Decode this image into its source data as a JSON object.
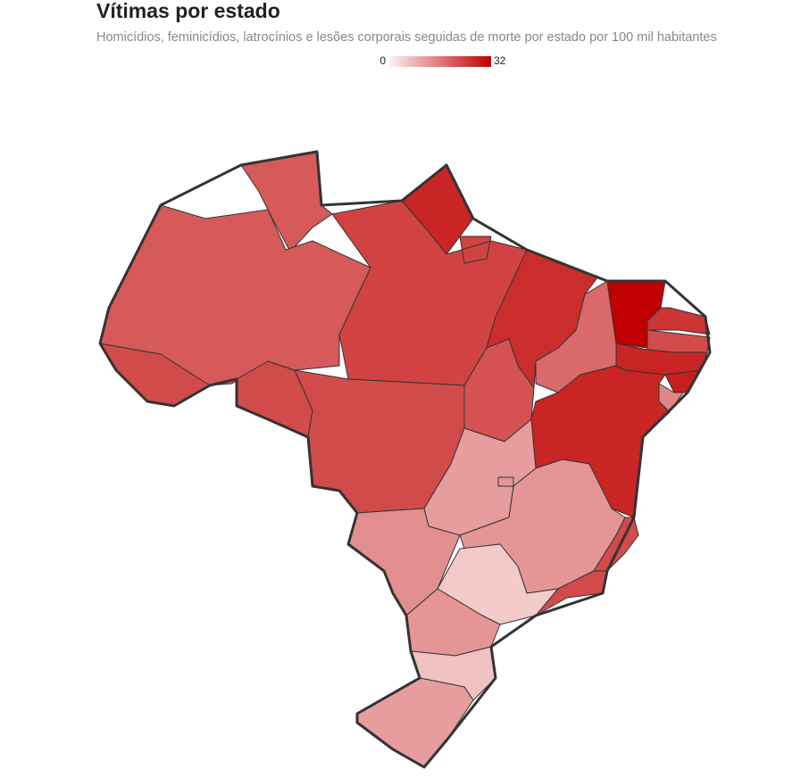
{
  "chart_data": {
    "type": "choropleth",
    "title": "Vítimas por estado",
    "subtitle": "Homicídios, feminicídios, latrocínios e lesões corporais seguidas de morte por estado por 100 mil habitantes",
    "colorscale": {
      "range": [
        0,
        32
      ],
      "colors": [
        "#fbefef",
        "#c00000"
      ]
    },
    "values": [
      20,
      22,
      20,
      27,
      23,
      22,
      22,
      26,
      21,
      18,
      32,
      25,
      22,
      27,
      28,
      14,
      27,
      11,
      12,
      12,
      22,
      22,
      5,
      13,
      12,
      6,
      11
    ]
  }
}
